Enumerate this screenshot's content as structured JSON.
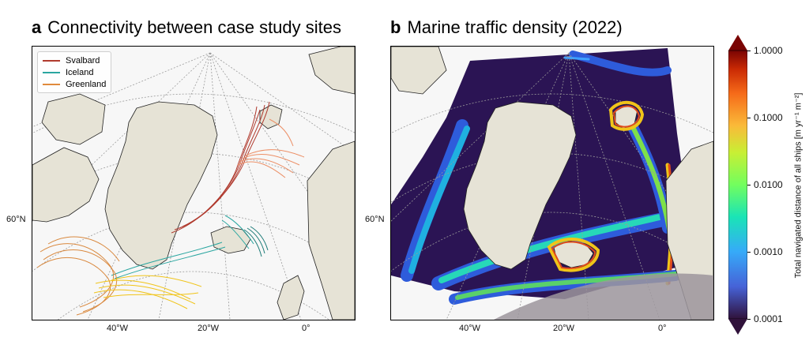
{
  "panel_a": {
    "letter": "a",
    "title": "Connectivity between case study sites",
    "legend": [
      {
        "label": "Svalbard",
        "color": "#b03a2e"
      },
      {
        "label": "Iceland",
        "color": "#2aa6a0"
      },
      {
        "label": "Greenland",
        "color": "#e08a3c"
      }
    ],
    "lat_label": "60°N",
    "lon_labels": [
      "40°W",
      "20°W",
      "0°"
    ]
  },
  "panel_b": {
    "letter": "b",
    "title": "Marine traffic density (2022)",
    "lat_label": "60°N",
    "lon_labels": [
      "40°W",
      "20°W",
      "0°"
    ]
  },
  "colorbar": {
    "label": "Total navigated distance of all ships [m yr⁻¹ m⁻²]",
    "ticks": [
      "1.0000",
      "0.1000",
      "0.0100",
      "0.0010",
      "0.0001"
    ],
    "scale": "log",
    "colormap": "turbo",
    "extend": "both"
  },
  "colors": {
    "land": "#e6e3d6",
    "ocean": "#f7f7f7",
    "density_low": "#2b1454",
    "svalbard": "#b03a2e",
    "svalbard_light": "#ec8f66",
    "iceland": "#2aa6a0",
    "iceland_dark": "#1a7a76",
    "greenland_orange": "#d9893f",
    "greenland_yellow": "#f0c419",
    "masked": "#9c959c"
  }
}
